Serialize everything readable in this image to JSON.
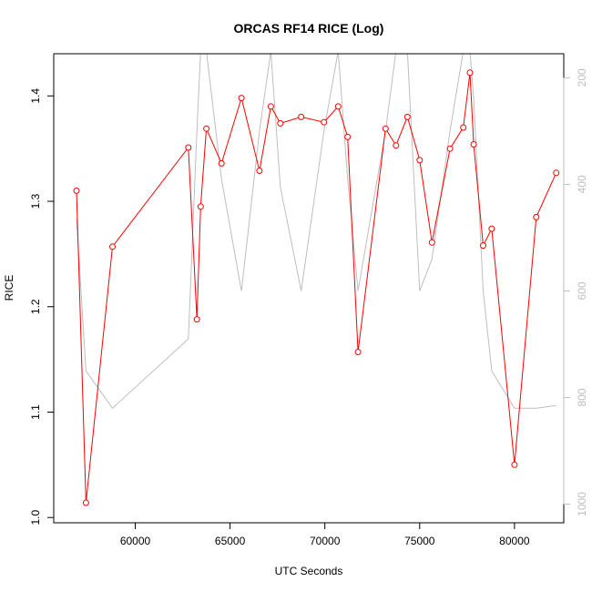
{
  "chart_data": {
    "type": "line",
    "title": "ORCAS RF14 RICE (Log)",
    "xlabel": "UTC Seconds",
    "ylabel": "RICE",
    "xlim": [
      55700,
      82600
    ],
    "ylim": [
      0.995,
      1.44
    ],
    "x_ticks": [
      60000,
      65000,
      70000,
      75000,
      80000
    ],
    "y_ticks": [
      1.0,
      1.1,
      1.2,
      1.3,
      1.4
    ],
    "y_tick_labels": [
      "1.0",
      "1.1",
      "1.2",
      "1.3",
      "1.4"
    ],
    "y2_inverted": true,
    "y2lim": [
      1035,
      155
    ],
    "y2_ticks": [
      200,
      400,
      600,
      800,
      1000
    ],
    "grid": false,
    "series": [
      {
        "color": "#ff0000",
        "marker": "open-circle",
        "axis": "left",
        "x": [
          56900,
          57400,
          58800,
          62800,
          63250,
          63450,
          63750,
          64550,
          65600,
          66550,
          67150,
          67650,
          68750,
          69950,
          70700,
          71200,
          71750,
          73200,
          73750,
          74350,
          75000,
          75650,
          76600,
          77300,
          77650,
          77850,
          78350,
          78800,
          80000,
          81150,
          82200
        ],
        "values": [
          1.31,
          1.014,
          1.257,
          1.351,
          1.188,
          1.295,
          1.369,
          1.336,
          1.398,
          1.329,
          1.39,
          1.374,
          1.38,
          1.375,
          1.39,
          1.361,
          1.157,
          1.369,
          1.353,
          1.38,
          1.339,
          1.261,
          1.35,
          1.37,
          1.422,
          1.354,
          1.258,
          1.274,
          1.05,
          1.285,
          1.327
        ]
      },
      {
        "color": "#bebebe",
        "axis": "right",
        "x": [
          56900,
          57400,
          58800,
          62800,
          63250,
          63450,
          63750,
          64550,
          65600,
          66550,
          67150,
          67650,
          68750,
          69950,
          70700,
          71200,
          71750,
          73200,
          73750,
          74350,
          75000,
          75650,
          76600,
          77300,
          77650,
          77850,
          78350,
          78800,
          80000,
          81150,
          82200
        ],
        "values": [
          465,
          750,
          820,
          690,
          300,
          150,
          150,
          390,
          600,
          300,
          150,
          405,
          600,
          300,
          150,
          390,
          600,
          300,
          150,
          150,
          600,
          540,
          300,
          150,
          150,
          240,
          600,
          750,
          820,
          820,
          815
        ]
      }
    ]
  }
}
